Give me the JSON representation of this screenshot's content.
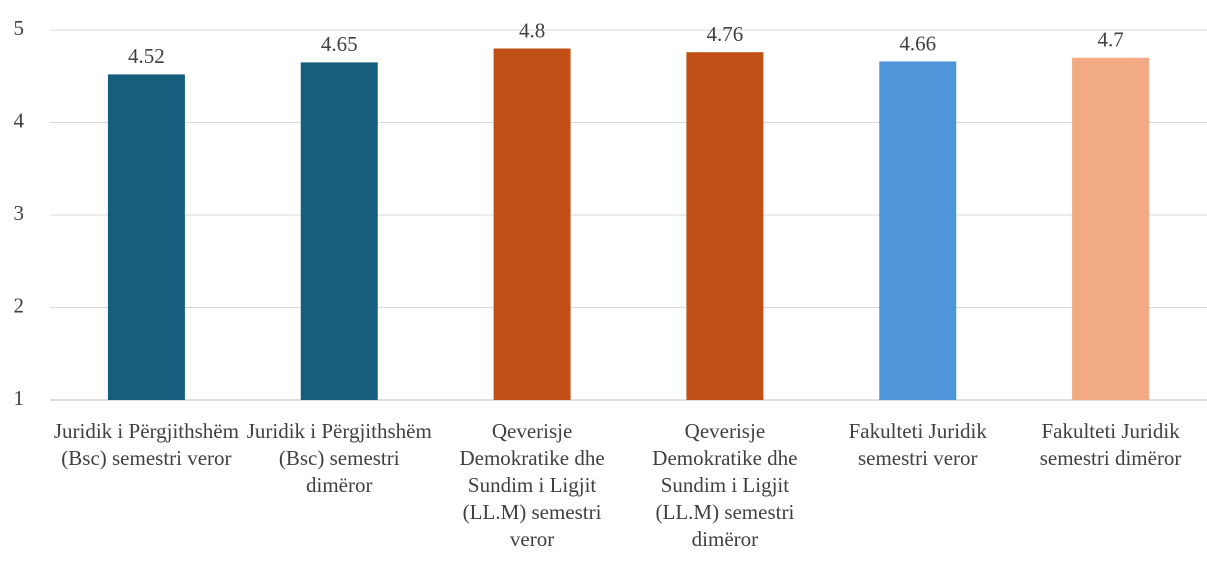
{
  "chart_data": {
    "type": "bar",
    "categories": [
      "Juridik i Përgjithshëm (Bsc) semestri veror",
      "Juridik i Përgjithshëm (Bsc) semestri dimëror",
      "Qeverisje Demokratike dhe Sundim i Ligjit (LL.M)  semestri veror",
      "Qeverisje Demokratike dhe Sundim i Ligjit (LL.M) semestri dimëror",
      "Fakulteti Juridik semestri veror",
      "Fakulteti Juridik semestri dimëror"
    ],
    "values": [
      4.52,
      4.65,
      4.8,
      4.76,
      4.66,
      4.7
    ],
    "colors": [
      "#175e7e",
      "#175e7e",
      "#c05015",
      "#c05015",
      "#4e95d9",
      "#f2aa84"
    ],
    "ylim": [
      1,
      5
    ],
    "yticks": [
      1,
      2,
      3,
      4,
      5
    ],
    "grid": true
  }
}
